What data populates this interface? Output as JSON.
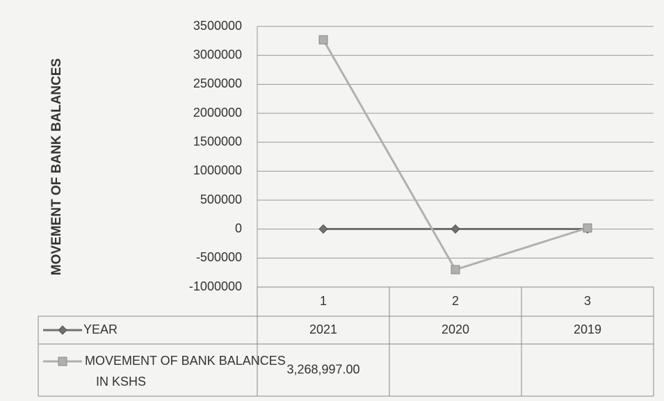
{
  "chart_data": {
    "type": "line",
    "y_label": "MOVEMENT OF BANK BALANCES",
    "categories": [
      "1",
      "2",
      "3"
    ],
    "series": [
      {
        "name": "YEAR",
        "color": "#707070",
        "marker": "diamond",
        "values": [
          2021,
          2020,
          2019
        ]
      },
      {
        "name": "MOVEMENT OF BANK BALANCES IN KSHS",
        "color": "#b0b0b0",
        "marker": "square",
        "values": [
          3268997,
          -700000,
          20000
        ],
        "value_labels": [
          "3,268,997.00",
          null,
          null
        ]
      }
    ],
    "ylim": [
      -1000000,
      3500000
    ],
    "yticks": [
      -1000000,
      -500000,
      0,
      500000,
      1000000,
      1500000,
      2000000,
      2500000,
      3000000,
      3500000
    ],
    "grid": true,
    "data_table": true
  }
}
